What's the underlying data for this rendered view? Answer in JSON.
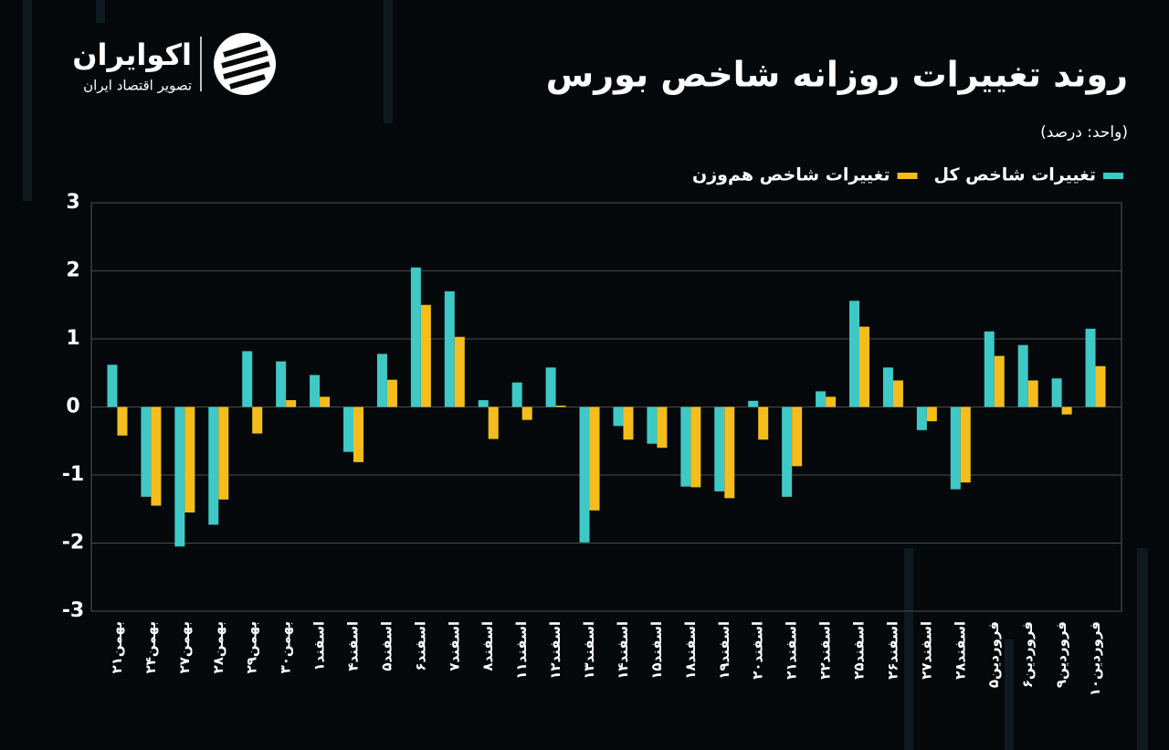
{
  "brand": {
    "name": "اکوایران",
    "tagline": "تصویر اقتصاد ایران"
  },
  "chart_data": {
    "type": "bar",
    "title": "روند تغییرات روزانه شاخص بورس",
    "subtitle": "(واحد: درصد)",
    "categories": [
      "بهمن۲۱",
      "بهمن۲۴",
      "بهمن۲۷",
      "بهمن۲۸",
      "بهمن۲۹",
      "بهمن۳۰",
      "اسفند۱",
      "اسفند۴",
      "اسفند۵",
      "اسفند۶",
      "اسفند۷",
      "اسفند۸",
      "اسفند۱۱",
      "اسفند۱۲",
      "اسفند۱۳",
      "اسفند۱۴",
      "اسفند۱۵",
      "اسفند۱۸",
      "اسفند۱۹",
      "اسفند۲۰",
      "اسفند۲۱",
      "اسفند۲۲",
      "اسفند۲۵",
      "اسفند۲۶",
      "اسفند۲۷",
      "اسفند۲۸",
      "فروردین۵",
      "فروردین۶",
      "فروردین۹",
      "فروردین۱۰"
    ],
    "series": [
      {
        "name": "تغییرات شاخص کل",
        "color": "#3ec9c6",
        "values": [
          0.62,
          -1.32,
          -2.05,
          -1.73,
          0.82,
          0.67,
          0.47,
          -0.66,
          0.78,
          2.05,
          1.7,
          0.1,
          0.36,
          0.58,
          -1.99,
          -0.28,
          -0.54,
          -1.17,
          -1.24,
          0.09,
          -1.32,
          0.23,
          1.56,
          0.58,
          -0.34,
          -1.21,
          1.11,
          0.91,
          0.42,
          1.15
        ]
      },
      {
        "name": "تغییرات شاخص هم‌وزن",
        "color": "#f5bd1c",
        "values": [
          -0.42,
          -1.45,
          -1.55,
          -1.36,
          -0.39,
          0.1,
          0.15,
          -0.81,
          0.4,
          1.5,
          1.03,
          -0.47,
          -0.19,
          0.02,
          -1.52,
          -0.48,
          -0.6,
          -1.18,
          -1.34,
          -0.48,
          -0.87,
          0.15,
          1.18,
          0.39,
          -0.21,
          -1.11,
          0.75,
          0.39,
          -0.11,
          0.6
        ]
      }
    ],
    "ylim": [
      -3,
      3
    ],
    "yticks": [
      -3,
      -2,
      -1,
      0,
      1,
      2,
      3
    ],
    "grid": true
  }
}
